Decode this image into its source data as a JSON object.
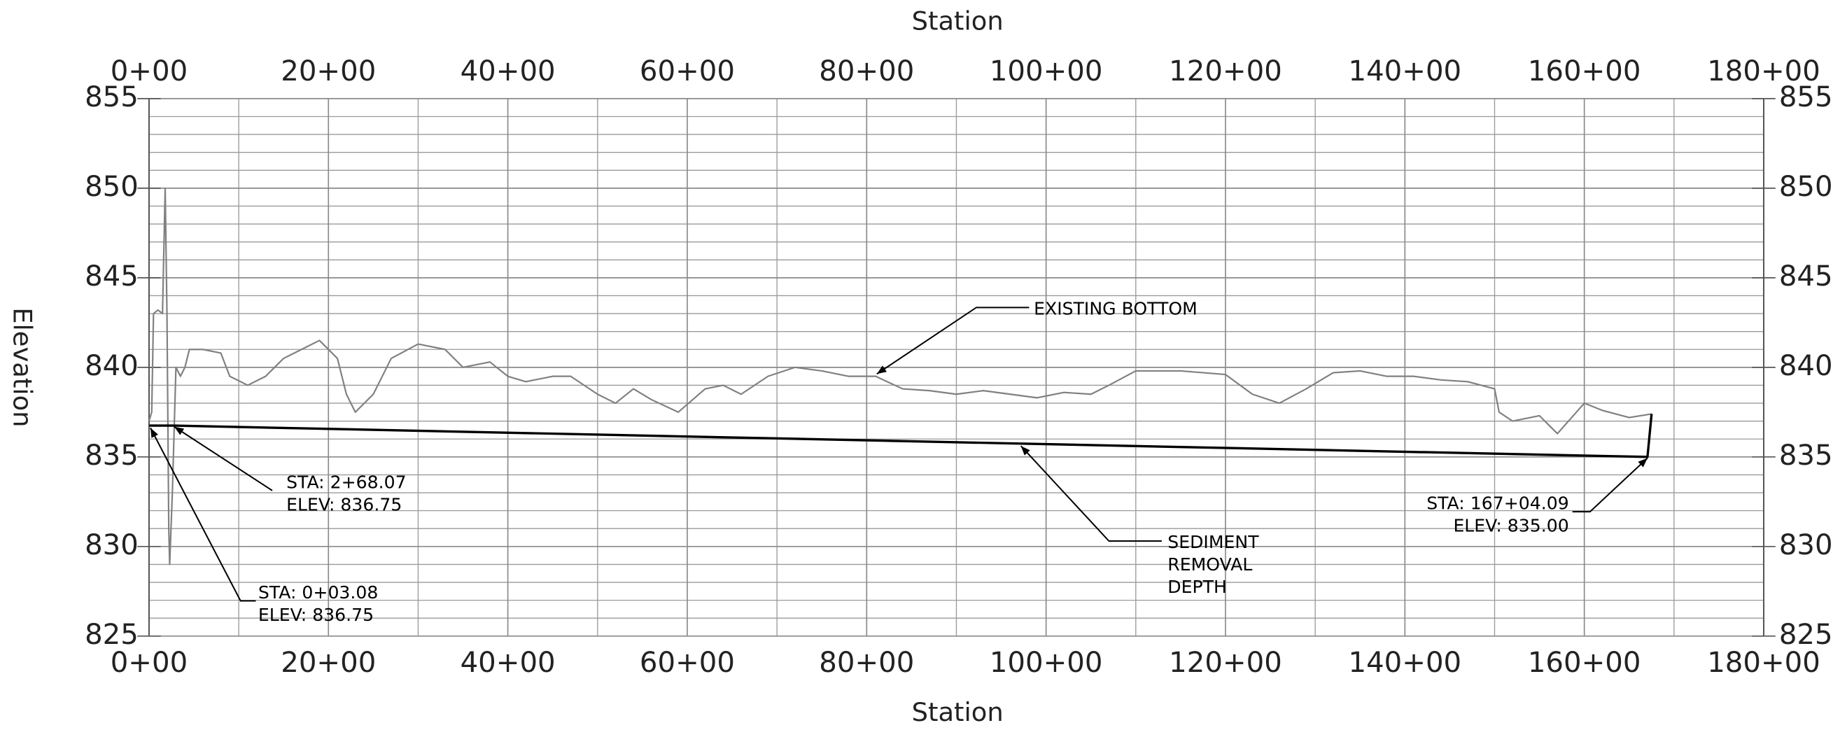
{
  "chart_data": {
    "type": "line",
    "xlabel": "Station",
    "ylabel": "Elevation",
    "xlim": [
      0,
      18000
    ],
    "ylim": [
      825,
      855
    ],
    "xticks": [
      {
        "value": 0,
        "label": "0+00"
      },
      {
        "value": 2000,
        "label": "20+00"
      },
      {
        "value": 4000,
        "label": "40+00"
      },
      {
        "value": 6000,
        "label": "60+00"
      },
      {
        "value": 8000,
        "label": "80+00"
      },
      {
        "value": 10000,
        "label": "100+00"
      },
      {
        "value": 12000,
        "label": "120+00"
      },
      {
        "value": 14000,
        "label": "140+00"
      },
      {
        "value": 16000,
        "label": "160+00"
      },
      {
        "value": 18000,
        "label": "180+00"
      }
    ],
    "yticks": [
      825,
      830,
      835,
      840,
      845,
      850,
      855
    ],
    "xticks_minor": [
      1000,
      3000,
      5000,
      7000,
      9000,
      11000,
      13000,
      15000,
      17000
    ],
    "yticks_minor": [
      826,
      827,
      828,
      829,
      831,
      832,
      833,
      834,
      836,
      837,
      838,
      839,
      841,
      842,
      843,
      844,
      846,
      847,
      848,
      849,
      851,
      852,
      853,
      854
    ],
    "grid": true,
    "series": [
      {
        "color": "#808080",
        "x": [
          0,
          30,
          50,
          100,
          150,
          180,
          200,
          220,
          230,
          260,
          300,
          350,
          400,
          450,
          600,
          800,
          900,
          1100,
          1300,
          1500,
          1700,
          1900,
          2100,
          2200,
          2300,
          2500,
          2700,
          3000,
          3300,
          3500,
          3800,
          4000,
          4200,
          4500,
          4700,
          5000,
          5200,
          5400,
          5600,
          5900,
          6200,
          6400,
          6600,
          6900,
          7200,
          7500,
          7800,
          8100,
          8400,
          8700,
          9000,
          9300,
          9600,
          9900,
          10200,
          10500,
          10700,
          11000,
          11500,
          12000,
          12300,
          12600,
          12900,
          13200,
          13500,
          13800,
          14100,
          14400,
          14700,
          15000,
          15050,
          15200,
          15500,
          15700,
          16000,
          16200,
          16500,
          16750
        ],
        "values": [
          837,
          837.5,
          843,
          843.2,
          843,
          850,
          843,
          831,
          829,
          833,
          840,
          839.5,
          840,
          841,
          841,
          840.8,
          839.5,
          839,
          839.5,
          840.5,
          841,
          841.5,
          840.5,
          838.5,
          837.5,
          838.5,
          840.5,
          841.3,
          841,
          840,
          840.3,
          839.5,
          839.2,
          839.5,
          839.5,
          838.5,
          838,
          838.8,
          838.2,
          837.5,
          838.8,
          839,
          838.5,
          839.5,
          840,
          839.8,
          839.5,
          839.5,
          838.8,
          838.7,
          838.5,
          838.7,
          838.5,
          838.3,
          838.6,
          838.5,
          839,
          839.8,
          839.8,
          839.6,
          838.5,
          838,
          838.8,
          839.7,
          839.8,
          839.5,
          839.5,
          839.3,
          839.2,
          838.8,
          837.5,
          837,
          837.3,
          836.3,
          838,
          837.6,
          837.2,
          837.4
        ]
      },
      {
        "color": "#000000",
        "x": [
          3.08,
          268.07,
          16704.09,
          16750
        ],
        "values": [
          836.75,
          836.75,
          835,
          837.4
        ]
      }
    ],
    "annotations": [
      {
        "text": [
          "EXISTING BOTTOM"
        ]
      },
      {
        "text": [
          "SEDIMENT",
          "REMOVAL",
          "DEPTH"
        ]
      },
      {
        "text": [
          "STA: 2+68.07",
          "ELEV: 836.75"
        ]
      },
      {
        "text": [
          "STA: 0+03.08",
          "ELEV: 836.75"
        ]
      },
      {
        "text": [
          "STA: 167+04.09",
          "ELEV: 835.00"
        ]
      }
    ]
  }
}
